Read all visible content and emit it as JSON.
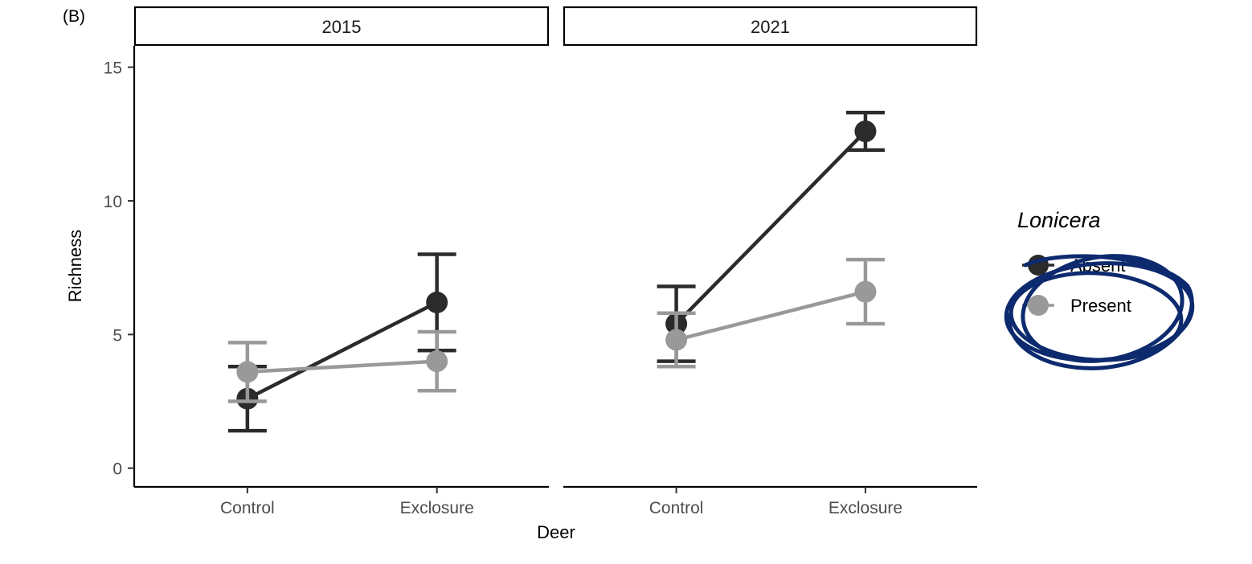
{
  "panel_tag": "(B)",
  "legend": {
    "title": "Lonicera",
    "absent_label": "Absent",
    "present_label": "Present"
  },
  "colors": {
    "absent": "#2b2b2b",
    "present": "#999999",
    "axis": "#000000",
    "annotation": "#0d2a6e"
  },
  "chart_data": {
    "type": "line",
    "subtype": "point-range with error bars, faceted",
    "xlabel": "Deer",
    "ylabel": "Richness",
    "categories": [
      "Control",
      "Exclosure"
    ],
    "ylim": [
      -0.7,
      15.8
    ],
    "yticks": [
      0,
      5,
      10,
      15
    ],
    "grid": false,
    "legend_position": "right",
    "facets": [
      {
        "label": "2015",
        "series": [
          {
            "name": "Absent",
            "values": [
              2.6,
              6.2
            ],
            "lower": [
              1.4,
              4.4
            ],
            "upper": [
              3.8,
              8.0
            ]
          },
          {
            "name": "Present",
            "values": [
              3.6,
              4.0
            ],
            "lower": [
              2.5,
              2.9
            ],
            "upper": [
              4.7,
              5.1
            ]
          }
        ]
      },
      {
        "label": "2021",
        "series": [
          {
            "name": "Absent",
            "values": [
              5.4,
              12.6
            ],
            "lower": [
              4.0,
              11.9
            ],
            "upper": [
              6.8,
              13.3
            ]
          },
          {
            "name": "Present",
            "values": [
              4.8,
              6.6
            ],
            "lower": [
              3.8,
              5.4
            ],
            "upper": [
              5.8,
              7.8
            ]
          }
        ]
      }
    ]
  }
}
